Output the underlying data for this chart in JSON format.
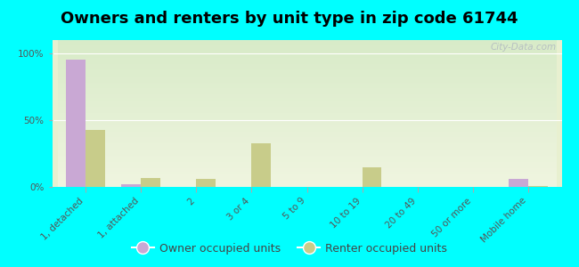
{
  "title": "Owners and renters by unit type in zip code 61744",
  "categories": [
    "1, detached",
    "1, attached",
    "2",
    "3 or 4",
    "5 to 9",
    "10 to 19",
    "20 to 49",
    "50 or more",
    "Mobile home"
  ],
  "owner_values": [
    95,
    2,
    0,
    0,
    0,
    0,
    0,
    0,
    6
  ],
  "renter_values": [
    43,
    7,
    6,
    33,
    0,
    15,
    0,
    0,
    1
  ],
  "owner_color": "#c9a8d4",
  "renter_color": "#c8cc8a",
  "background_color": "#00ffff",
  "plot_bg_color": "#e8f0d0",
  "ylabel_ticks": [
    "0%",
    "50%",
    "100%"
  ],
  "ytick_values": [
    0,
    50,
    100
  ],
  "ylim": [
    0,
    110
  ],
  "bar_width": 0.35,
  "legend_owner": "Owner occupied units",
  "legend_renter": "Renter occupied units",
  "watermark": "City-Data.com",
  "title_fontsize": 13,
  "tick_fontsize": 7.5,
  "legend_fontsize": 9
}
